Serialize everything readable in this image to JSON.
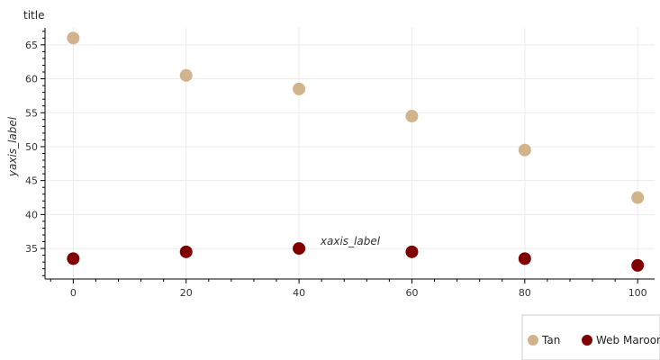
{
  "chart_data": {
    "type": "scatter",
    "title": "title",
    "xlabel": "xaxis_label",
    "ylabel": "yaxis_label",
    "xlim": [
      -5,
      103
    ],
    "ylim": [
      30.5,
      67.5
    ],
    "x_ticks": [
      0,
      20,
      40,
      60,
      80,
      100
    ],
    "y_ticks": [
      35,
      40,
      45,
      50,
      55,
      60,
      65
    ],
    "grid": true,
    "legend_position": "bottom-right",
    "series": [
      {
        "name": "Tan",
        "color": "#d2b48c",
        "x": [
          0,
          20,
          40,
          60,
          80,
          100
        ],
        "y": [
          66.0,
          60.5,
          58.5,
          54.5,
          49.5,
          42.5
        ]
      },
      {
        "name": "Web Maroon",
        "color": "#800000",
        "x": [
          0,
          20,
          40,
          60,
          80,
          100
        ],
        "y": [
          33.5,
          34.5,
          35.0,
          34.5,
          33.5,
          32.5
        ]
      }
    ]
  }
}
